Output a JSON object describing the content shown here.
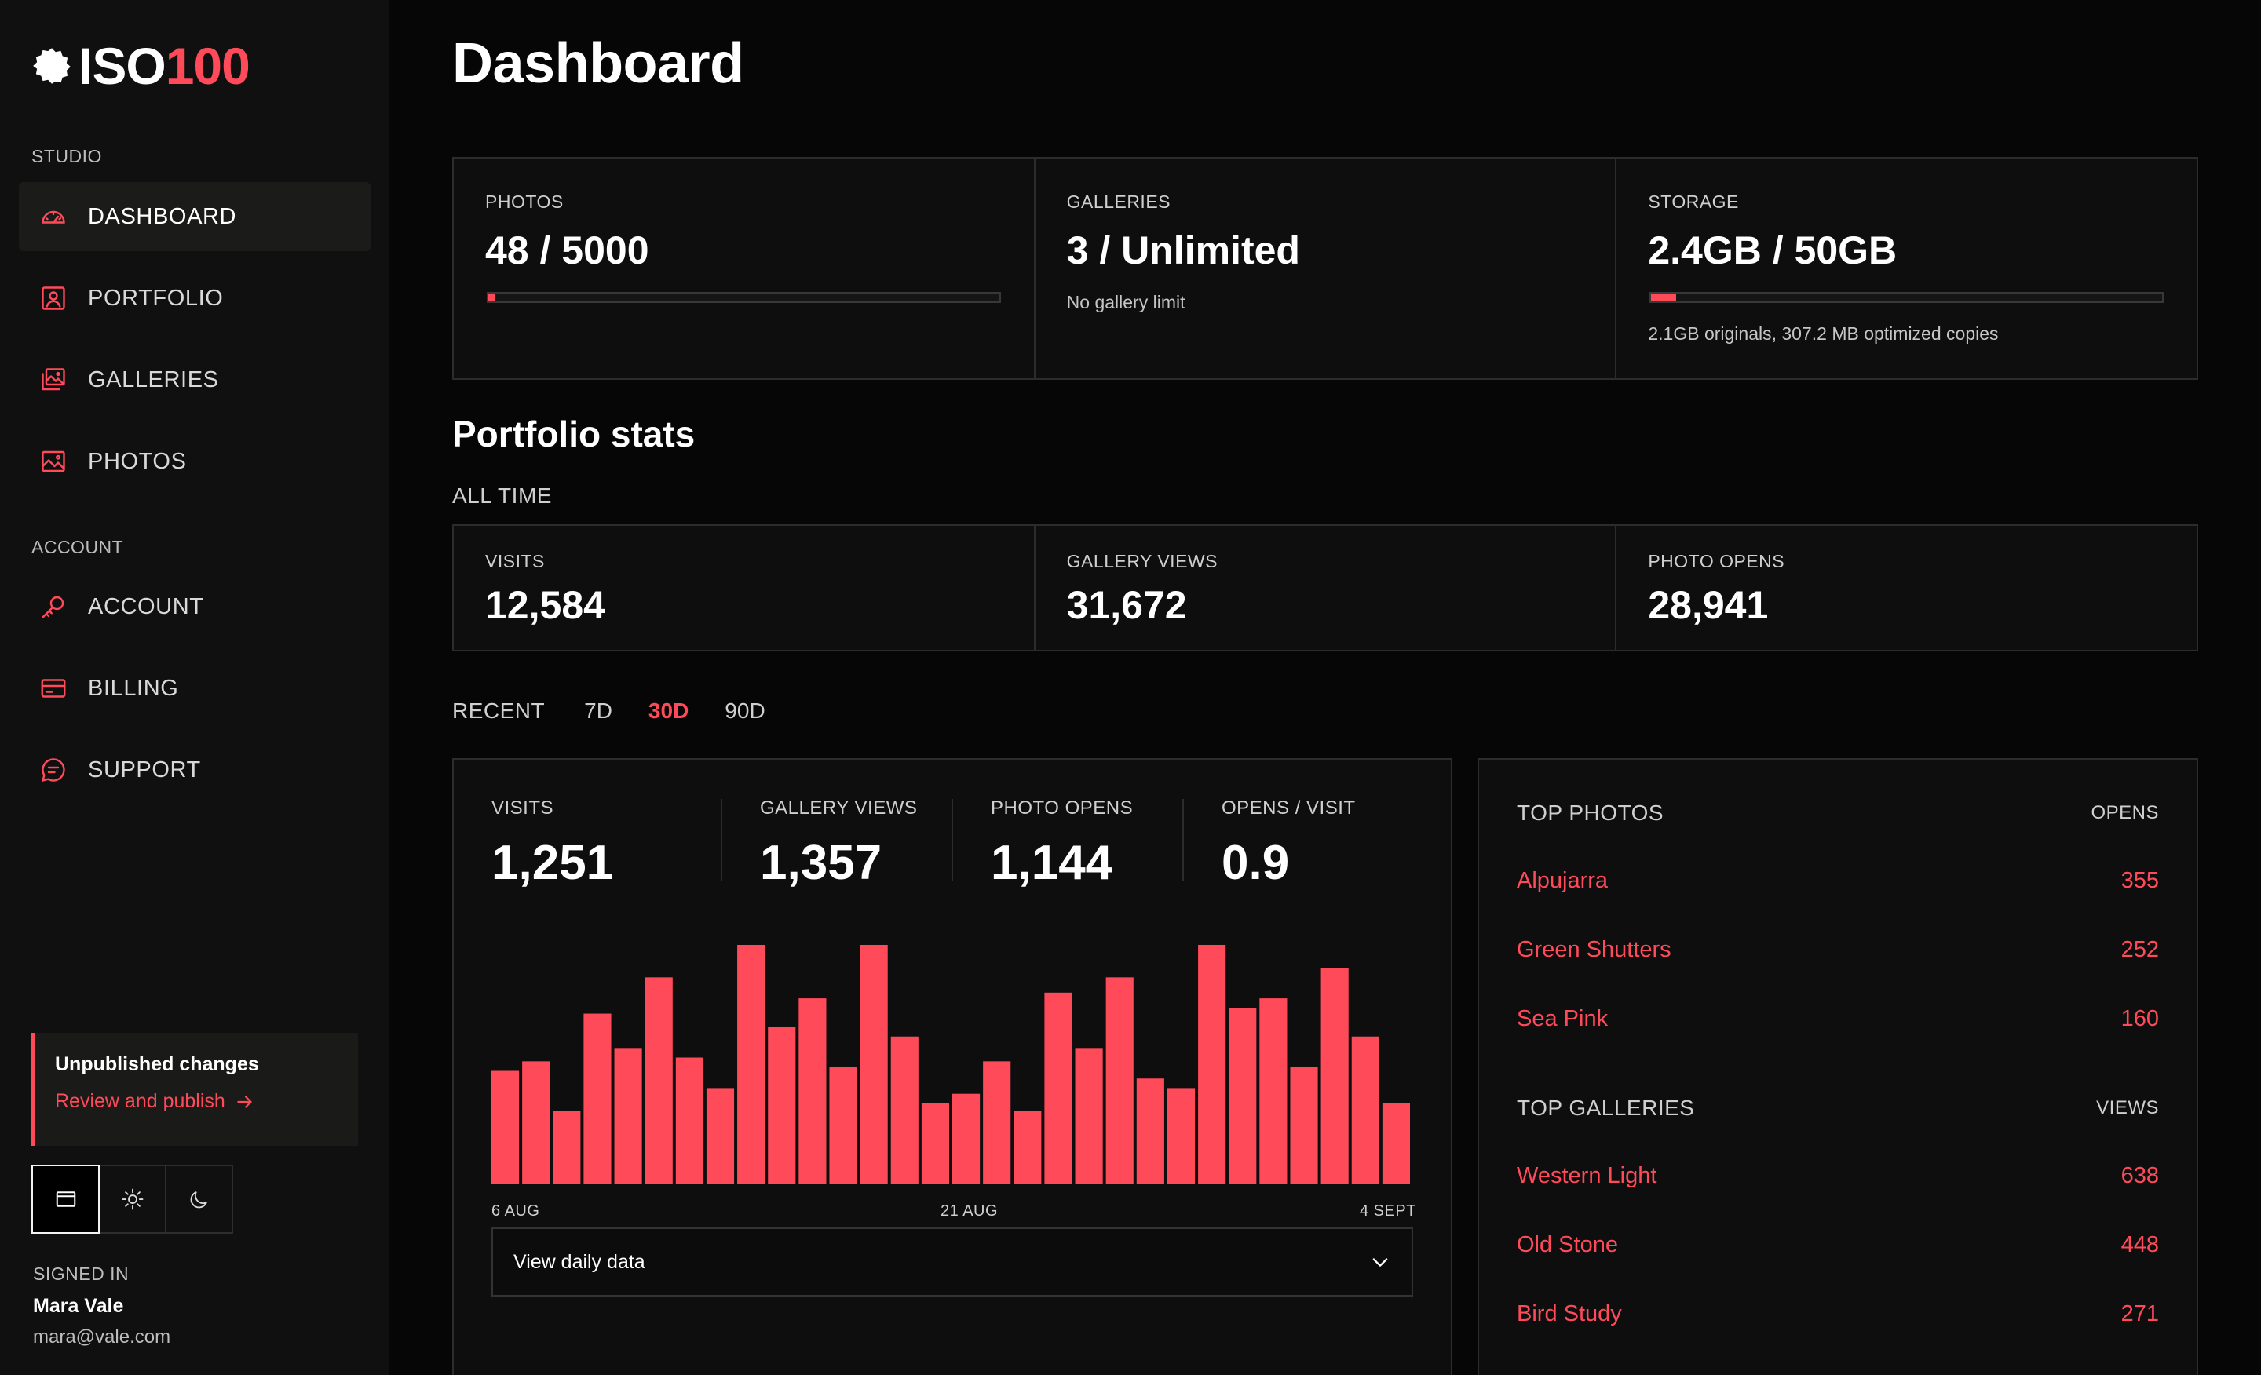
{
  "brand": {
    "prefix": "ISO",
    "suffix": "100"
  },
  "colors": {
    "accent": "#ff4a5a",
    "background": "#060606",
    "sidebar": "#101010",
    "panel": "#0e0e0e"
  },
  "sidebar": {
    "studio_label": "STUDIO",
    "studio_items": [
      {
        "label": "DASHBOARD",
        "icon": "gauge-icon",
        "active": true
      },
      {
        "label": "PORTFOLIO",
        "icon": "portrait-icon"
      },
      {
        "label": "GALLERIES",
        "icon": "images-icon"
      },
      {
        "label": "PHOTOS",
        "icon": "image-icon"
      }
    ],
    "account_label": "ACCOUNT",
    "account_items": [
      {
        "label": "ACCOUNT",
        "icon": "key-icon"
      },
      {
        "label": "BILLING",
        "icon": "credit-card-icon"
      },
      {
        "label": "SUPPORT",
        "icon": "chat-icon"
      }
    ],
    "notice": {
      "title": "Unpublished changes",
      "link": "Review and publish"
    },
    "theme_options": [
      "system-theme-icon",
      "sun-icon",
      "moon-icon"
    ],
    "signed_in": {
      "label": "SIGNED IN",
      "name": "Mara Vale",
      "email": "mara@vale.com"
    }
  },
  "page": {
    "title": "Dashboard"
  },
  "usage": {
    "photos": {
      "label": "PHOTOS",
      "value": "48 / 5000",
      "fraction": 0.0096
    },
    "galleries": {
      "label": "GALLERIES",
      "value": "3 / Unlimited",
      "note": "No gallery limit"
    },
    "storage": {
      "label": "STORAGE",
      "value": "2.4GB / 50GB",
      "fraction": 0.048,
      "note": "2.1GB originals, 307.2 MB optimized copies"
    }
  },
  "portfolio_stats": {
    "heading": "Portfolio stats",
    "subheading": "ALL TIME",
    "visits": {
      "label": "VISITS",
      "value": "12,584"
    },
    "gallery_views": {
      "label": "GALLERY VIEWS",
      "value": "31,672"
    },
    "photo_opens": {
      "label": "PHOTO OPENS",
      "value": "28,941"
    }
  },
  "recent": {
    "label": "RECENT",
    "tabs": [
      "7D",
      "30D",
      "90D"
    ],
    "active_tab": "30D",
    "metrics": {
      "visits": {
        "label": "VISITS",
        "value": "1,251"
      },
      "gallery_views": {
        "label": "GALLERY VIEWS",
        "value": "1,357"
      },
      "photo_opens": {
        "label": "PHOTO OPENS",
        "value": "1,144"
      },
      "opens_per_visit": {
        "label": "OPENS / VISIT",
        "value": "0.9"
      }
    },
    "select_label": "View daily data"
  },
  "chart_data": {
    "type": "bar",
    "x_tick_labels": [
      "6 AUG",
      "21 AUG",
      "4 SEPT"
    ],
    "values": [
      59,
      64,
      38,
      89,
      71,
      108,
      66,
      50,
      125,
      82,
      97,
      61,
      125,
      77,
      42,
      47,
      64,
      38,
      100,
      71,
      108,
      55,
      50,
      125,
      92,
      97,
      61,
      113,
      77,
      42
    ],
    "ylim": [
      0,
      125
    ],
    "grid": false,
    "color": "#ff4a5a"
  },
  "top_photos": {
    "title": "TOP PHOTOS",
    "column": "OPENS",
    "rows": [
      {
        "name": "Alpujarra",
        "value": "355"
      },
      {
        "name": "Green Shutters",
        "value": "252"
      },
      {
        "name": "Sea Pink",
        "value": "160"
      }
    ]
  },
  "top_galleries": {
    "title": "TOP GALLERIES",
    "column": "VIEWS",
    "rows": [
      {
        "name": "Western Light",
        "value": "638"
      },
      {
        "name": "Old Stone",
        "value": "448"
      },
      {
        "name": "Bird Study",
        "value": "271"
      }
    ]
  }
}
